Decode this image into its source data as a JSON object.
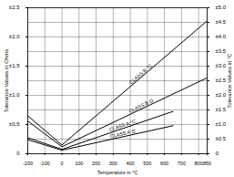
{
  "chart_data": {
    "type": "line",
    "x_label": "Temperature in °C",
    "y_label": "Tolerance Values in Ohms",
    "y2_label": "Tolerance Values in °C",
    "xlim": [
      -200,
      850
    ],
    "xticks": [
      -200,
      -100,
      0,
      100,
      200,
      300,
      400,
      500,
      600,
      700,
      800,
      850
    ],
    "ylim": [
      0,
      2.5
    ],
    "yticks": [
      0,
      {
        "value": 0.5,
        "label": "±0.5"
      },
      {
        "value": 1.0,
        "label": "±1.0"
      },
      {
        "value": 1.5,
        "label": "±1.5"
      },
      {
        "value": 2.0,
        "label": "±2.0"
      },
      {
        "value": 2.5,
        "label": "±2.5"
      }
    ],
    "y2lim": [
      0,
      5
    ],
    "y2ticks": [
      0,
      {
        "value": 0.5,
        "label": "±0.5"
      },
      {
        "value": 1.0,
        "label": "±1.0"
      },
      {
        "value": 1.5,
        "label": "±1.5"
      },
      {
        "value": 2.0,
        "label": "±2.0"
      },
      {
        "value": 2.5,
        "label": "±2.5"
      },
      {
        "value": 3.0,
        "label": "±3.0"
      },
      {
        "value": 3.5,
        "label": "±3.5"
      },
      {
        "value": 4.0,
        "label": "±4.0"
      },
      {
        "value": 4.5,
        "label": "±4.5"
      },
      {
        "value": 5.0,
        "label": "±5.0"
      }
    ],
    "grid": true,
    "series": [
      {
        "name": "CLASS B °C",
        "axis": "y2",
        "color": "#000000",
        "x": [
          -200,
          0,
          850
        ],
        "values": [
          1.3,
          0.3,
          4.55
        ]
      },
      {
        "name": "CLASS B Ω",
        "axis": "y",
        "color": "#000000",
        "x": [
          -200,
          0,
          850
        ],
        "values": [
          0.56,
          0.12,
          1.3
        ]
      },
      {
        "name": "CLASS A °C",
        "axis": "y2",
        "color": "#000000",
        "x": [
          -200,
          0,
          650
        ],
        "values": [
          0.55,
          0.15,
          1.45
        ]
      },
      {
        "name": "CLASS A Ω",
        "axis": "y",
        "color": "#000000",
        "x": [
          -200,
          0,
          650
        ],
        "values": [
          0.24,
          0.06,
          0.48
        ]
      }
    ]
  }
}
